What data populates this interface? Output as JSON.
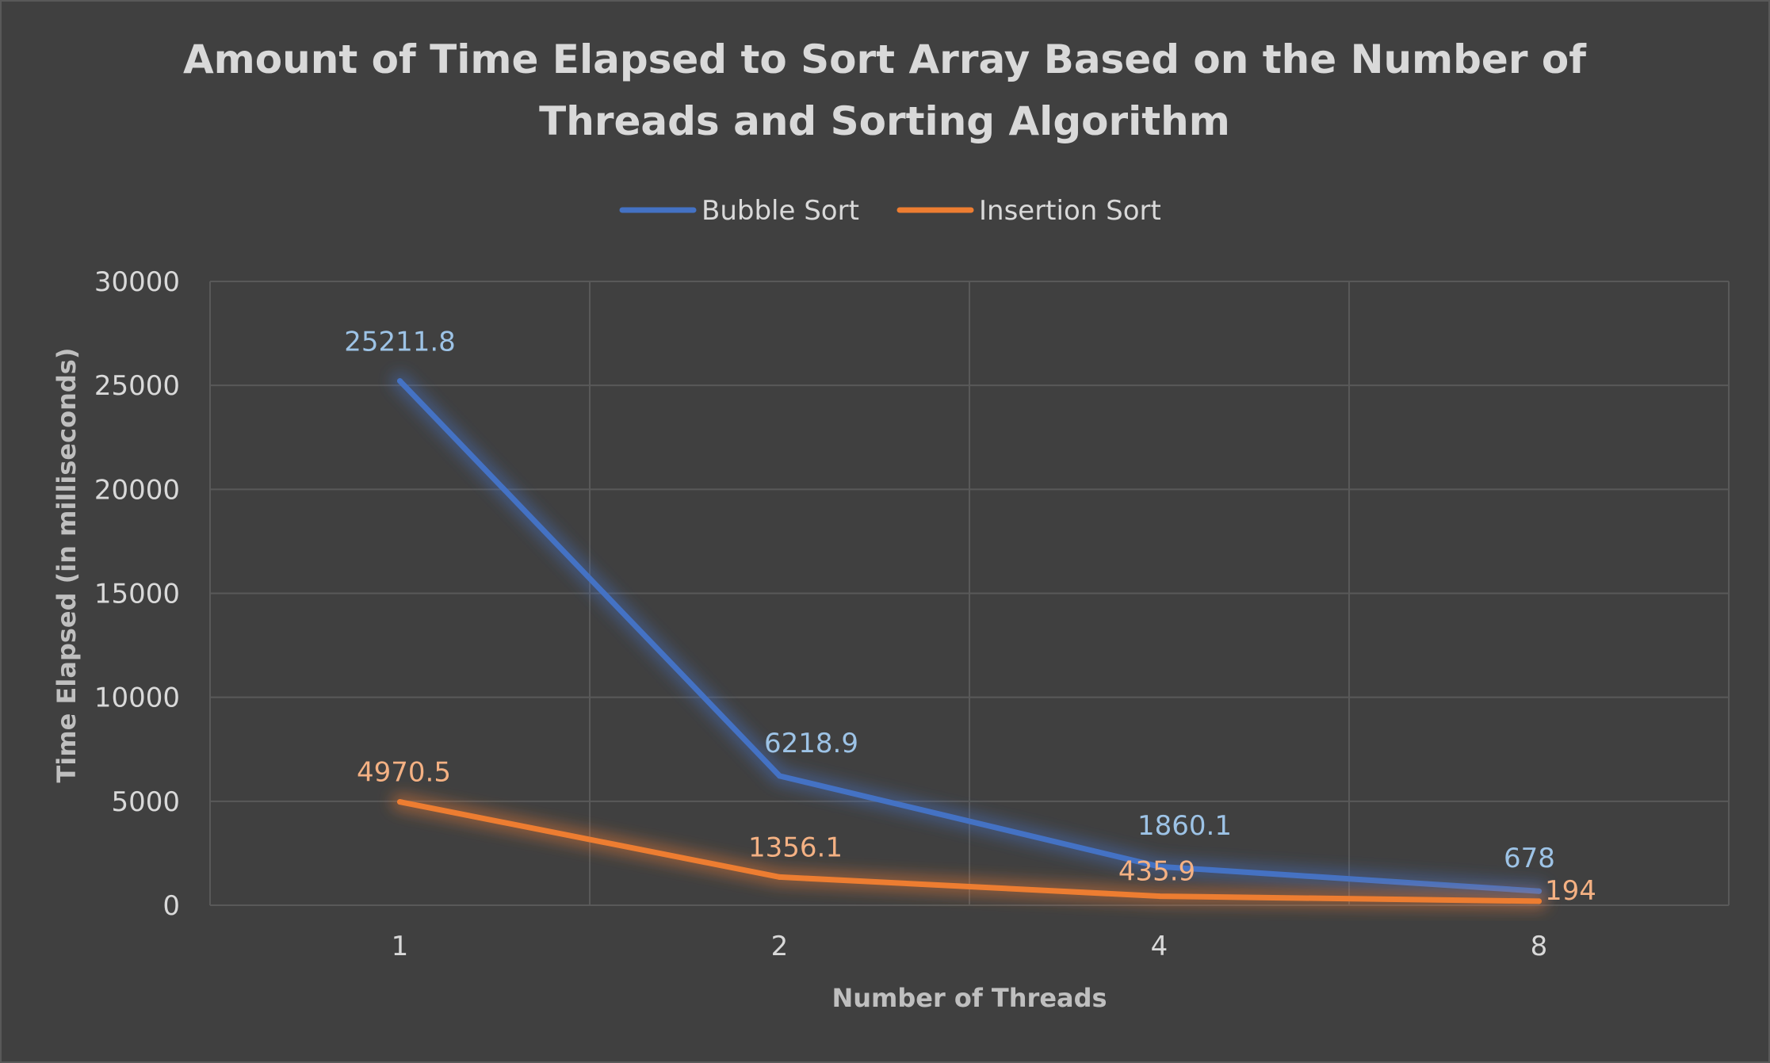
{
  "chart_data": {
    "type": "line",
    "title": "Amount of Time Elapsed to Sort Array Based on the Number of Threads and Sorting Algorithm",
    "title_lines": [
      "Amount of Time Elapsed to Sort Array Based on the Number of",
      "Threads and Sorting Algorithm"
    ],
    "xlabel": "Number of Threads",
    "ylabel": "Time Elapsed (in milliseconds)",
    "categories": [
      "1",
      "2",
      "4",
      "8"
    ],
    "ylim": [
      0,
      30000
    ],
    "yticks": [
      0,
      5000,
      10000,
      15000,
      20000,
      25000,
      30000
    ],
    "grid": true,
    "legend_position": "top",
    "series": [
      {
        "name": "Bubble Sort",
        "values": [
          25211.8,
          6218.9,
          1860.1,
          678
        ],
        "labels": [
          "25211.8",
          "6218.9",
          "1860.1",
          "678"
        ],
        "color": "#4472c4",
        "label_color": "#9dc3e6"
      },
      {
        "name": "Insertion Sort",
        "values": [
          4970.5,
          1356.1,
          435.9,
          194
        ],
        "labels": [
          "4970.5",
          "1356.1",
          "435.9",
          "194"
        ],
        "color": "#ed7d31",
        "label_color": "#f4b183"
      }
    ]
  },
  "colors": {
    "background": "#404040",
    "gridline": "#595959",
    "text": "#d9d9d9"
  }
}
